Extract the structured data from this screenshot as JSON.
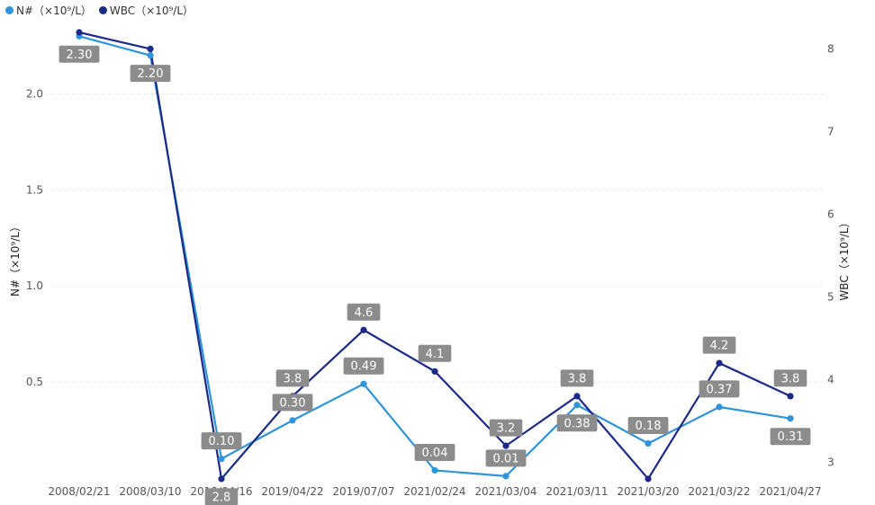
{
  "chart_data": {
    "type": "line",
    "categories": [
      "2008/02/21",
      "2008/03/10",
      "2019/04/16",
      "2019/04/22",
      "2019/07/07",
      "2021/02/24",
      "2021/03/04",
      "2021/03/11",
      "2021/03/20",
      "2021/03/22",
      "2021/04/27"
    ],
    "series": [
      {
        "name": "N#（×10⁹/L）",
        "axis": "left",
        "color": "#2e95dc",
        "values": [
          2.3,
          2.2,
          0.1,
          0.3,
          0.49,
          0.04,
          0.01,
          0.38,
          0.18,
          0.37,
          0.31
        ],
        "labels": [
          "2.30",
          "2.20",
          "0.10",
          "0.30",
          "0.49",
          "0.04",
          "0.01",
          "0.38",
          "0.18",
          "0.37",
          "0.31"
        ]
      },
      {
        "name": "WBC（×10⁹/L）",
        "axis": "right",
        "color": "#1c2a8a",
        "values": [
          8.2,
          8.0,
          2.8,
          3.8,
          4.6,
          4.1,
          3.2,
          3.8,
          2.8,
          4.2,
          3.8
        ],
        "labels": [
          "",
          "",
          "2.8",
          "3.8",
          "4.6",
          "4.1",
          "3.2",
          "3.8",
          "",
          "4.2",
          "3.8"
        ]
      }
    ],
    "y_left": {
      "label": "N#（×10⁹/L）",
      "ticks": [
        "0.5",
        "1.0",
        "1.5",
        "2.0"
      ],
      "range": [
        0,
        2.32
      ]
    },
    "y_right": {
      "label": "WBC（×10⁹/L）",
      "ticks": [
        "3",
        "4",
        "5",
        "6",
        "7",
        "8"
      ],
      "range": [
        2.81,
        8.2
      ]
    },
    "grid": true,
    "legend_position": "top-left"
  }
}
